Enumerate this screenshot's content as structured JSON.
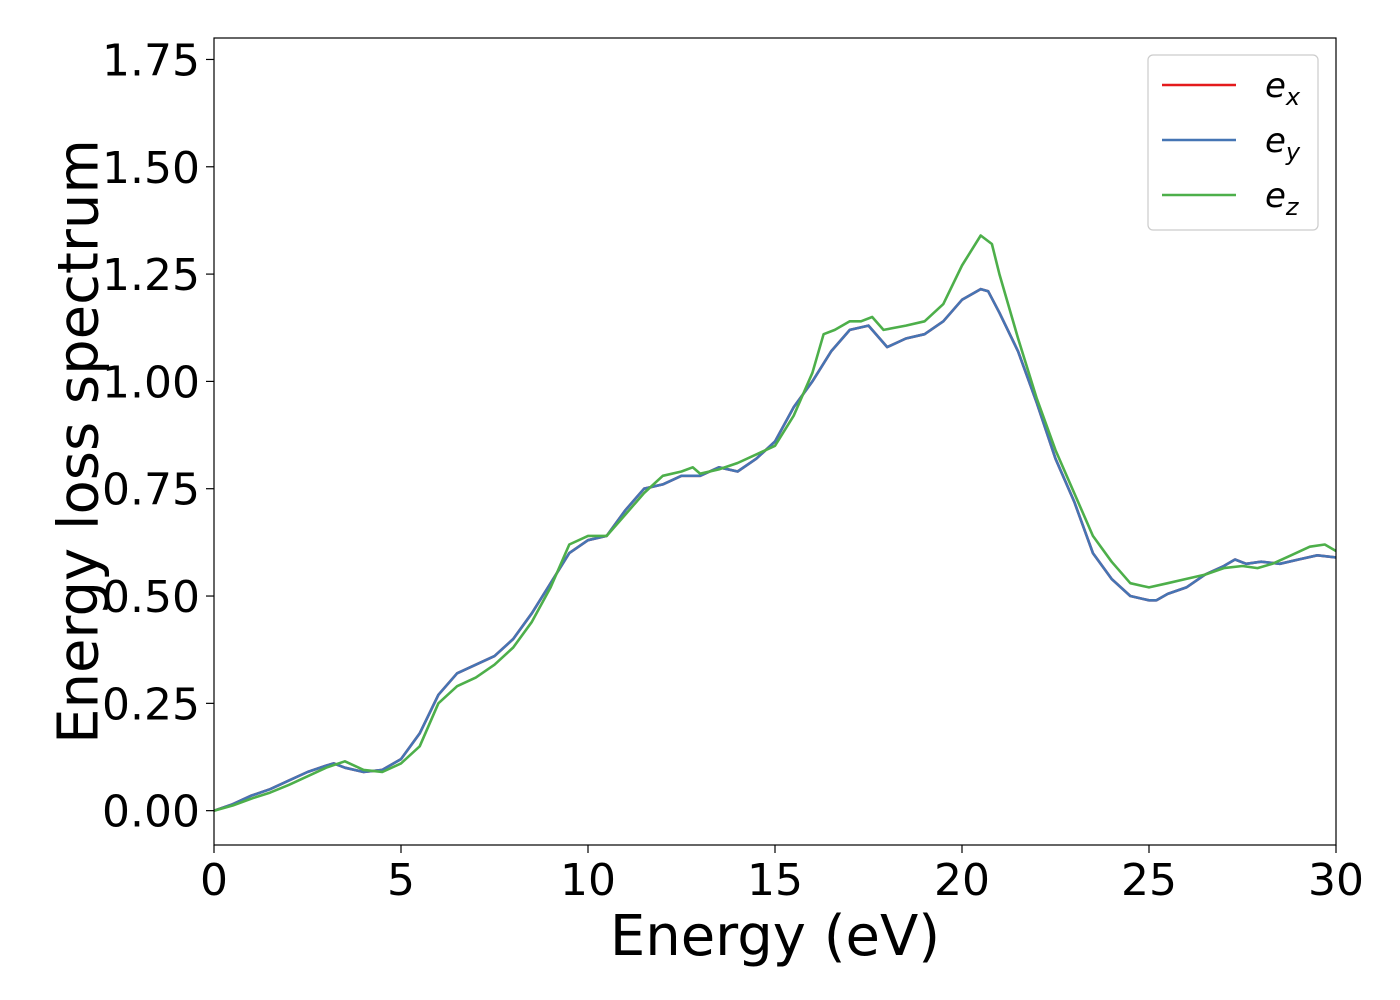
{
  "chart_data": {
    "type": "line",
    "xlabel": "Energy (eV)",
    "ylabel": "Energy loss spectrum",
    "xlim": [
      0,
      30
    ],
    "ylim": [
      -0.08,
      1.8
    ],
    "xticks": [
      0,
      5,
      10,
      15,
      20,
      25,
      30
    ],
    "xtick_labels": [
      "0",
      "5",
      "10",
      "15",
      "20",
      "25",
      "30"
    ],
    "yticks": [
      0.0,
      0.25,
      0.5,
      0.75,
      1.0,
      1.25,
      1.5,
      1.75
    ],
    "ytick_labels": [
      "0.00",
      "0.25",
      "0.50",
      "0.75",
      "1.00",
      "1.25",
      "1.50",
      "1.75"
    ],
    "grid": false,
    "legend_position": "top-right",
    "series": [
      {
        "name": "e_x",
        "label_base": "e",
        "label_sub": "x",
        "color": "#e41a1c",
        "x": [
          0,
          0.5,
          1,
          1.5,
          2,
          2.5,
          3,
          3.2,
          3.5,
          4,
          4.5,
          5,
          5.5,
          6,
          6.5,
          7,
          7.5,
          8,
          8.5,
          9,
          9.5,
          10,
          10.5,
          11,
          11.5,
          12,
          12.5,
          13,
          13.5,
          14,
          14.5,
          15,
          15.5,
          16,
          16.5,
          17,
          17.5,
          18,
          18.5,
          19,
          19.5,
          20,
          20.5,
          20.7,
          21,
          21.5,
          22,
          22.5,
          23,
          23.5,
          24,
          24.5,
          25,
          25.2,
          25.5,
          26,
          26.5,
          27,
          27.3,
          27.6,
          28,
          28.5,
          29,
          29.5,
          30
        ],
        "y": [
          0,
          0.015,
          0.035,
          0.05,
          0.07,
          0.09,
          0.105,
          0.11,
          0.1,
          0.09,
          0.095,
          0.12,
          0.18,
          0.27,
          0.32,
          0.34,
          0.36,
          0.4,
          0.46,
          0.53,
          0.6,
          0.63,
          0.64,
          0.7,
          0.75,
          0.76,
          0.78,
          0.78,
          0.8,
          0.79,
          0.82,
          0.86,
          0.94,
          1.0,
          1.07,
          1.12,
          1.13,
          1.08,
          1.1,
          1.11,
          1.14,
          1.19,
          1.215,
          1.21,
          1.16,
          1.07,
          0.95,
          0.82,
          0.72,
          0.6,
          0.54,
          0.5,
          0.49,
          0.49,
          0.505,
          0.52,
          0.55,
          0.57,
          0.585,
          0.575,
          0.58,
          0.575,
          0.585,
          0.595,
          0.59
        ]
      },
      {
        "name": "e_y",
        "label_base": "e",
        "label_sub": "y",
        "color": "#4575b4",
        "x": [
          0,
          0.5,
          1,
          1.5,
          2,
          2.5,
          3,
          3.2,
          3.5,
          4,
          4.5,
          5,
          5.5,
          6,
          6.5,
          7,
          7.5,
          8,
          8.5,
          9,
          9.5,
          10,
          10.5,
          11,
          11.5,
          12,
          12.5,
          13,
          13.5,
          14,
          14.5,
          15,
          15.5,
          16,
          16.5,
          17,
          17.5,
          18,
          18.5,
          19,
          19.5,
          20,
          20.5,
          20.7,
          21,
          21.5,
          22,
          22.5,
          23,
          23.5,
          24,
          24.5,
          25,
          25.2,
          25.5,
          26,
          26.5,
          27,
          27.3,
          27.6,
          28,
          28.5,
          29,
          29.5,
          30
        ],
        "y": [
          0,
          0.015,
          0.035,
          0.05,
          0.07,
          0.09,
          0.105,
          0.11,
          0.1,
          0.09,
          0.095,
          0.12,
          0.18,
          0.27,
          0.32,
          0.34,
          0.36,
          0.4,
          0.46,
          0.53,
          0.6,
          0.63,
          0.64,
          0.7,
          0.75,
          0.76,
          0.78,
          0.78,
          0.8,
          0.79,
          0.82,
          0.86,
          0.94,
          1.0,
          1.07,
          1.12,
          1.13,
          1.08,
          1.1,
          1.11,
          1.14,
          1.19,
          1.215,
          1.21,
          1.16,
          1.07,
          0.95,
          0.82,
          0.72,
          0.6,
          0.54,
          0.5,
          0.49,
          0.49,
          0.505,
          0.52,
          0.55,
          0.57,
          0.585,
          0.575,
          0.58,
          0.575,
          0.585,
          0.595,
          0.59
        ]
      },
      {
        "name": "e_z",
        "label_base": "e",
        "label_sub": "z",
        "color": "#4daf4a",
        "x": [
          0,
          0.5,
          1,
          1.5,
          2,
          2.5,
          3,
          3.5,
          4,
          4.5,
          5,
          5.5,
          6,
          6.5,
          7,
          7.5,
          8,
          8.5,
          9,
          9.5,
          10,
          10.5,
          11,
          11.5,
          12,
          12.5,
          12.8,
          13,
          13.5,
          14,
          14.5,
          15,
          15.5,
          16,
          16.3,
          16.6,
          17,
          17.3,
          17.6,
          17.9,
          18.5,
          19,
          19.5,
          20,
          20.5,
          20.8,
          21,
          21.5,
          22,
          22.5,
          23,
          23.5,
          24,
          24.5,
          25,
          25.5,
          26,
          26.5,
          27,
          27.5,
          27.9,
          28.3,
          28.8,
          29.3,
          29.7,
          30
        ],
        "y": [
          0,
          0.012,
          0.028,
          0.042,
          0.06,
          0.08,
          0.1,
          0.115,
          0.095,
          0.09,
          0.11,
          0.15,
          0.25,
          0.29,
          0.31,
          0.34,
          0.38,
          0.44,
          0.52,
          0.62,
          0.64,
          0.64,
          0.69,
          0.74,
          0.78,
          0.79,
          0.8,
          0.785,
          0.795,
          0.81,
          0.83,
          0.85,
          0.92,
          1.02,
          1.11,
          1.12,
          1.14,
          1.14,
          1.15,
          1.12,
          1.13,
          1.14,
          1.18,
          1.27,
          1.34,
          1.32,
          1.25,
          1.1,
          0.96,
          0.84,
          0.74,
          0.64,
          0.58,
          0.53,
          0.52,
          0.53,
          0.54,
          0.55,
          0.565,
          0.57,
          0.565,
          0.575,
          0.595,
          0.615,
          0.62,
          0.605
        ]
      }
    ]
  }
}
